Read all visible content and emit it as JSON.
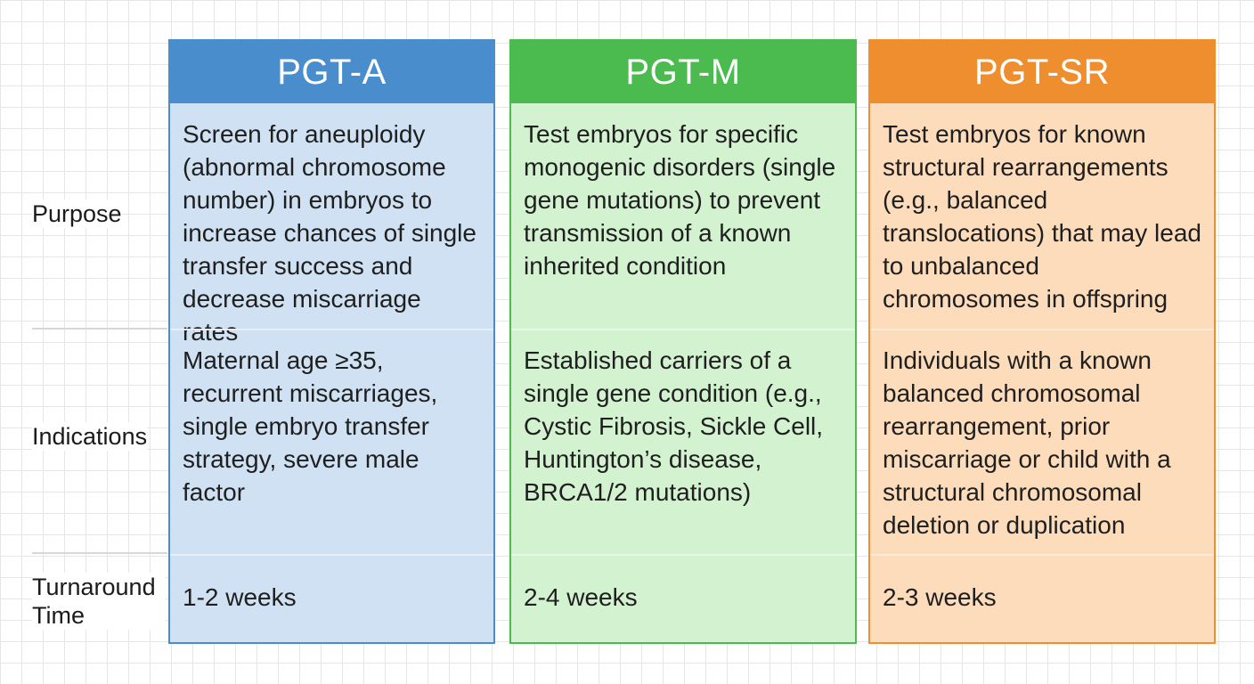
{
  "row_labels": {
    "purpose": "Purpose",
    "indications": "Indications",
    "turnaround": "Turnaround Time"
  },
  "columns": [
    {
      "title": "PGT-A",
      "color": "#4a8dcc",
      "purpose": "Screen for aneuploidy (abnormal chromosome number) in embryos to increase chances of single transfer success and decrease miscarriage rates",
      "indications": "Maternal age ≥35, recurrent miscarriages, single embryo transfer strategy, severe male factor",
      "turnaround": "1-2 weeks"
    },
    {
      "title": "PGT-M",
      "color": "#4cbb4f",
      "purpose": "Test embryos for specific monogenic disorders (single gene mutations) to prevent transmission of a known inherited condition",
      "indications": "Established carriers of a single gene condition (e.g., Cystic Fibrosis, Sickle Cell, Huntington’s disease, BRCA1/2 mutations)",
      "turnaround": "2-4 weeks"
    },
    {
      "title": "PGT-SR",
      "color": "#ef8e2e",
      "purpose": "Test embryos for known structural rearrangements (e.g., balanced translocations) that may lead to unbalanced chromosomes in offspring",
      "indications": "Individuals with a known balanced chromosomal rearrangement, prior miscarriage or child with a structural chromosomal deletion or duplication",
      "turnaround": "2-3 weeks"
    }
  ]
}
